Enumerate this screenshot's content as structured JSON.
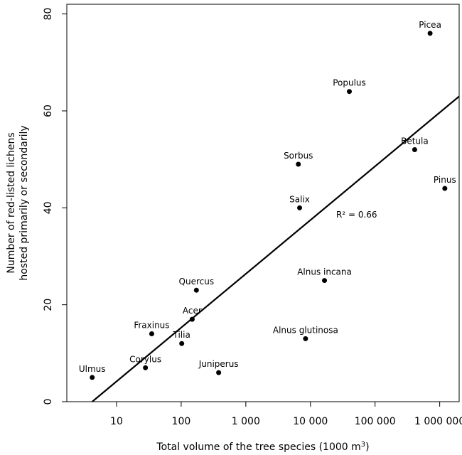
{
  "chart_data": {
    "type": "scatter",
    "x_scale": "log",
    "xlabel": "Total volume of the tree species (1000 m",
    "xlabel_sup": "3",
    "xlabel_suffix": ")",
    "ylabel_lines": [
      "Number of red-listed lichens",
      "hosted primarily or secondarily"
    ],
    "xlim": [
      1.7,
      2000000
    ],
    "ylim": [
      0,
      82
    ],
    "x_ticks": [
      {
        "value": 10,
        "label": "10"
      },
      {
        "value": 100,
        "label": "100"
      },
      {
        "value": 1000,
        "label": "1 000"
      },
      {
        "value": 10000,
        "label": "10 000"
      },
      {
        "value": 100000,
        "label": "100 000"
      },
      {
        "value": 1000000,
        "label": "1 000 000"
      }
    ],
    "y_ticks": [
      {
        "value": 0,
        "label": "0"
      },
      {
        "value": 20,
        "label": "20"
      },
      {
        "value": 40,
        "label": "40"
      },
      {
        "value": 60,
        "label": "60"
      },
      {
        "value": 80,
        "label": "80"
      }
    ],
    "points": [
      {
        "label": "Ulmus",
        "x": 4.2,
        "y": 5
      },
      {
        "label": "Corylus",
        "x": 28,
        "y": 7
      },
      {
        "label": "Fraxinus",
        "x": 35,
        "y": 14
      },
      {
        "label": "Tilia",
        "x": 102,
        "y": 12
      },
      {
        "label": "Acer",
        "x": 148,
        "y": 17
      },
      {
        "label": "Quercus",
        "x": 172,
        "y": 23
      },
      {
        "label": "Juniperus",
        "x": 380,
        "y": 6
      },
      {
        "label": "Sorbus",
        "x": 6500,
        "y": 49
      },
      {
        "label": "Salix",
        "x": 6800,
        "y": 40
      },
      {
        "label": "Alnus glutinosa",
        "x": 8400,
        "y": 13
      },
      {
        "label": "Alnus incana",
        "x": 16500,
        "y": 25
      },
      {
        "label": "Populus",
        "x": 40000,
        "y": 64
      },
      {
        "label": "Betula",
        "x": 410000,
        "y": 52
      },
      {
        "label": "Picea",
        "x": 710000,
        "y": 76
      },
      {
        "label": "Pinus",
        "x": 1200000,
        "y": 44
      }
    ],
    "trendline": {
      "x1": 4.2,
      "y1": 0,
      "x2": 2000000,
      "y2": 63
    },
    "annotation": "R² = 0.66",
    "grid": false,
    "legend": "none"
  }
}
